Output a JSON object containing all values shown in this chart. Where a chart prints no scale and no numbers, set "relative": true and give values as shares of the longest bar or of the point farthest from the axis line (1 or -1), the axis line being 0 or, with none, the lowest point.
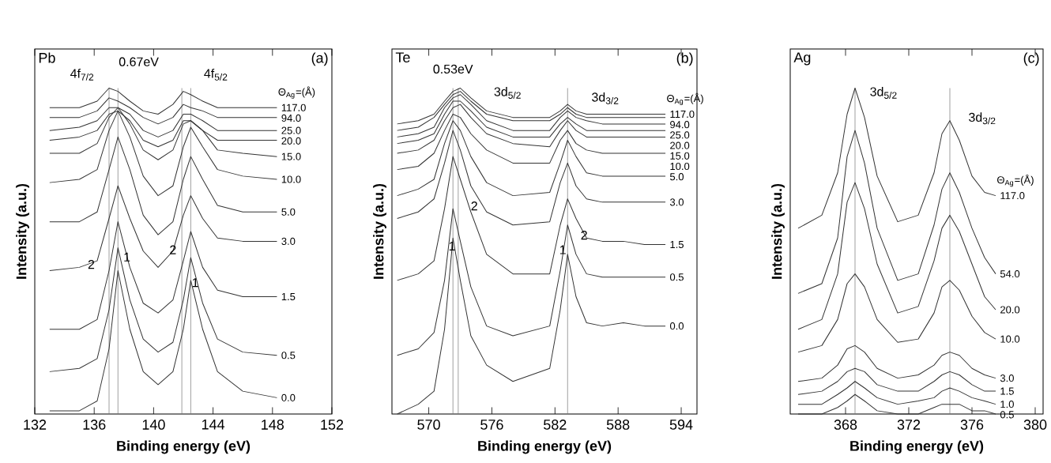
{
  "chart_data": [
    {
      "type": "line",
      "title": "Pb",
      "subtitle": "(a)",
      "xlabel": "Binding energy (eV)",
      "ylabel": "Intensity (a.u.)",
      "relative": true,
      "legend_title": "Θ$_{Ag}$=(Å)",
      "xlim": [
        132,
        152
      ],
      "xticks": [
        132,
        136,
        140,
        144,
        148,
        152
      ],
      "x": [
        133,
        135,
        136.2,
        137,
        137.6,
        138.4,
        139.3,
        140.3,
        141.3,
        142,
        142.5,
        143.3,
        144.3,
        146,
        148.3
      ],
      "series": [
        {
          "name": "117.0",
          "color": "#333333",
          "values": [
            0.94,
            0.94,
            0.96,
            1.0,
            0.99,
            0.96,
            0.93,
            0.92,
            0.95,
            0.99,
            0.98,
            0.96,
            0.94,
            0.94,
            0.94
          ]
        },
        {
          "name": "94.0",
          "color": "#333333",
          "values": [
            0.91,
            0.91,
            0.93,
            0.97,
            0.96,
            0.94,
            0.91,
            0.89,
            0.91,
            0.95,
            0.94,
            0.93,
            0.91,
            0.91,
            0.91
          ]
        },
        {
          "name": "25.0",
          "color": "#333333",
          "values": [
            0.87,
            0.88,
            0.9,
            0.94,
            0.94,
            0.92,
            0.87,
            0.85,
            0.87,
            0.92,
            0.92,
            0.9,
            0.87,
            0.87,
            0.87
          ]
        },
        {
          "name": "20.0",
          "color": "#333333",
          "values": [
            0.84,
            0.85,
            0.87,
            0.92,
            0.93,
            0.9,
            0.84,
            0.82,
            0.84,
            0.9,
            0.9,
            0.87,
            0.84,
            0.84,
            0.84
          ]
        },
        {
          "name": "15.0",
          "color": "#333333",
          "values": [
            0.8,
            0.8,
            0.83,
            0.91,
            0.94,
            0.89,
            0.81,
            0.78,
            0.81,
            0.89,
            0.9,
            0.87,
            0.81,
            0.8,
            0.79
          ]
        },
        {
          "name": "10.0",
          "color": "#333333",
          "values": [
            0.71,
            0.72,
            0.75,
            0.87,
            0.93,
            0.85,
            0.73,
            0.67,
            0.7,
            0.82,
            0.88,
            0.82,
            0.75,
            0.73,
            0.72
          ]
        },
        {
          "name": "5.0",
          "color": "#333333",
          "values": [
            0.59,
            0.59,
            0.62,
            0.75,
            0.85,
            0.75,
            0.61,
            0.55,
            0.59,
            0.72,
            0.79,
            0.72,
            0.64,
            0.62,
            0.62
          ]
        },
        {
          "name": "3.0",
          "color": "#333333",
          "values": [
            0.44,
            0.45,
            0.47,
            0.6,
            0.7,
            0.6,
            0.5,
            0.45,
            0.5,
            0.61,
            0.67,
            0.6,
            0.54,
            0.53,
            0.53
          ]
        },
        {
          "name": "1.5",
          "color": "#333333",
          "values": [
            0.26,
            0.26,
            0.29,
            0.44,
            0.59,
            0.45,
            0.34,
            0.31,
            0.35,
            0.47,
            0.56,
            0.45,
            0.38,
            0.36,
            0.36
          ]
        },
        {
          "name": "0.5",
          "color": "#333333",
          "values": [
            0.13,
            0.14,
            0.17,
            0.32,
            0.51,
            0.35,
            0.23,
            0.19,
            0.22,
            0.35,
            0.48,
            0.34,
            0.23,
            0.19,
            0.18
          ]
        },
        {
          "name": "0.0",
          "color": "#333333",
          "values": [
            0.01,
            0.01,
            0.04,
            0.2,
            0.44,
            0.26,
            0.13,
            0.09,
            0.13,
            0.26,
            0.41,
            0.26,
            0.13,
            0.07,
            0.05
          ]
        }
      ],
      "ref_lines": [
        {
          "axis": "x",
          "value": 137.0,
          "color": "#777777"
        },
        {
          "axis": "x",
          "value": 137.6,
          "color": "#777777"
        },
        {
          "axis": "x",
          "value": 141.9,
          "color": "#777777"
        },
        {
          "axis": "x",
          "value": 142.5,
          "color": "#777777"
        }
      ],
      "annotations": [
        "4f$_{7/2}$",
        "0.67eV",
        "4f$_{5/2}$",
        "2",
        "1",
        "2",
        "1"
      ]
    },
    {
      "type": "line",
      "title": "Te",
      "subtitle": "(b)",
      "xlabel": "Binding energy (eV)",
      "ylabel": "Intensity (a.u.)",
      "relative": true,
      "legend_title": "Θ$_{Ag}$=(Å)",
      "xlim": [
        566.5,
        595.5
      ],
      "xticks": [
        570,
        576,
        582,
        588,
        594
      ],
      "x": [
        567,
        569,
        570.5,
        571.5,
        572.3,
        573,
        574,
        575.5,
        578,
        581.5,
        582.5,
        583.2,
        584,
        585,
        586.5,
        588.5,
        590.5,
        592.5
      ],
      "series": [
        {
          "name": "117.0",
          "color": "#333333",
          "values": [
            0.89,
            0.9,
            0.92,
            0.96,
            0.99,
            1.0,
            0.97,
            0.93,
            0.91,
            0.91,
            0.93,
            0.95,
            0.93,
            0.92,
            0.92,
            0.92,
            0.92,
            0.92
          ]
        },
        {
          "name": "94.0",
          "color": "#333333",
          "values": [
            0.87,
            0.88,
            0.91,
            0.95,
            0.98,
            0.99,
            0.96,
            0.92,
            0.9,
            0.9,
            0.92,
            0.94,
            0.92,
            0.91,
            0.91,
            0.91,
            0.91,
            0.91
          ]
        },
        {
          "name": "25.0",
          "color": "#333333",
          "values": [
            0.85,
            0.86,
            0.88,
            0.94,
            0.97,
            0.98,
            0.95,
            0.9,
            0.87,
            0.87,
            0.91,
            0.93,
            0.91,
            0.9,
            0.89,
            0.89,
            0.89,
            0.89
          ]
        },
        {
          "name": "20.0",
          "color": "#333333",
          "values": [
            0.83,
            0.84,
            0.86,
            0.92,
            0.96,
            0.96,
            0.93,
            0.88,
            0.85,
            0.85,
            0.89,
            0.91,
            0.89,
            0.87,
            0.87,
            0.87,
            0.87,
            0.87
          ]
        },
        {
          "name": "15.0",
          "color": "#333333",
          "values": [
            0.8,
            0.81,
            0.84,
            0.9,
            0.94,
            0.95,
            0.91,
            0.86,
            0.83,
            0.82,
            0.87,
            0.9,
            0.87,
            0.85,
            0.85,
            0.85,
            0.85,
            0.85
          ]
        },
        {
          "name": "10.0",
          "color": "#333333",
          "values": [
            0.75,
            0.76,
            0.8,
            0.87,
            0.92,
            0.91,
            0.86,
            0.81,
            0.77,
            0.77,
            0.84,
            0.87,
            0.83,
            0.81,
            0.8,
            0.8,
            0.8,
            0.8
          ]
        },
        {
          "name": "5.0",
          "color": "#333333",
          "values": [
            0.67,
            0.69,
            0.72,
            0.83,
            0.9,
            0.87,
            0.79,
            0.71,
            0.67,
            0.68,
            0.77,
            0.84,
            0.79,
            0.74,
            0.73,
            0.73,
            0.73,
            0.73
          ]
        },
        {
          "name": "3.0",
          "color": "#333333",
          "values": [
            0.6,
            0.62,
            0.66,
            0.77,
            0.87,
            0.81,
            0.7,
            0.62,
            0.58,
            0.59,
            0.71,
            0.77,
            0.7,
            0.66,
            0.65,
            0.65,
            0.65,
            0.65
          ]
        },
        {
          "name": "1.5",
          "color": "#333333",
          "values": [
            0.41,
            0.43,
            0.47,
            0.63,
            0.79,
            0.72,
            0.62,
            0.49,
            0.43,
            0.43,
            0.58,
            0.66,
            0.6,
            0.54,
            0.53,
            0.53,
            0.52,
            0.52
          ]
        },
        {
          "name": "0.5",
          "color": "#333333",
          "values": [
            0.18,
            0.2,
            0.25,
            0.41,
            0.63,
            0.53,
            0.39,
            0.27,
            0.24,
            0.27,
            0.44,
            0.58,
            0.49,
            0.43,
            0.42,
            0.42,
            0.42,
            0.42
          ]
        },
        {
          "name": "0.0",
          "color": "#333333",
          "values": [
            0,
            0.03,
            0.07,
            0.26,
            0.54,
            0.41,
            0.24,
            0.15,
            0.1,
            0.14,
            0.32,
            0.49,
            0.36,
            0.28,
            0.27,
            0.28,
            0.27,
            0.27
          ]
        }
      ],
      "ref_lines": [
        {
          "axis": "x",
          "value": 572.3,
          "color": "#777777"
        },
        {
          "axis": "x",
          "value": 572.8,
          "color": "#777777"
        },
        {
          "axis": "x",
          "value": 583.2,
          "color": "#777777"
        }
      ],
      "annotations": [
        "0.53eV",
        "3d$_{5/2}$",
        "3d$_{3/2}$",
        "2",
        "1",
        "2",
        "1"
      ]
    },
    {
      "type": "line",
      "title": "Ag",
      "subtitle": "(c)",
      "xlabel": "Binding energy (eV)",
      "ylabel": "Intensity (a.u.)",
      "relative": true,
      "legend_title": "Θ$_{Ag}$=(Å)",
      "xlim": [
        364.5,
        380.5
      ],
      "xticks": [
        368,
        372,
        376,
        380
      ],
      "x": [
        365,
        366.5,
        367.5,
        368.1,
        368.6,
        369.2,
        370,
        371.3,
        372.6,
        373.6,
        374.1,
        374.6,
        375.2,
        376,
        376.8,
        377.5
      ],
      "series": [
        {
          "name": "117.0",
          "color": "#333333",
          "values": [
            0.57,
            0.61,
            0.74,
            0.92,
            1.0,
            0.91,
            0.73,
            0.59,
            0.61,
            0.74,
            0.86,
            0.9,
            0.84,
            0.73,
            0.68,
            0.67
          ]
        },
        {
          "name": "54.0",
          "color": "#333333",
          "values": [
            0.37,
            0.4,
            0.54,
            0.79,
            0.87,
            0.77,
            0.57,
            0.41,
            0.43,
            0.58,
            0.69,
            0.74,
            0.68,
            0.57,
            0.48,
            0.43
          ]
        },
        {
          "name": "20.0",
          "color": "#333333",
          "values": [
            0.26,
            0.29,
            0.43,
            0.65,
            0.71,
            0.63,
            0.46,
            0.31,
            0.33,
            0.47,
            0.57,
            0.61,
            0.56,
            0.46,
            0.36,
            0.32
          ]
        },
        {
          "name": "10.0",
          "color": "#333333",
          "values": [
            0.19,
            0.21,
            0.29,
            0.4,
            0.43,
            0.39,
            0.29,
            0.22,
            0.23,
            0.31,
            0.39,
            0.41,
            0.38,
            0.3,
            0.25,
            0.23
          ]
        },
        {
          "name": "3.0",
          "color": "#333333",
          "values": [
            0.1,
            0.11,
            0.15,
            0.2,
            0.21,
            0.19,
            0.14,
            0.11,
            0.12,
            0.15,
            0.18,
            0.19,
            0.18,
            0.14,
            0.12,
            0.11
          ]
        },
        {
          "name": "1.5",
          "color": "#333333",
          "values": [
            0.06,
            0.07,
            0.1,
            0.13,
            0.14,
            0.13,
            0.09,
            0.07,
            0.07,
            0.1,
            0.12,
            0.13,
            0.12,
            0.09,
            0.07,
            0.07
          ]
        },
        {
          "name": "1.0",
          "color": "#333333",
          "values": [
            0.03,
            0.03,
            0.06,
            0.08,
            0.1,
            0.08,
            0.05,
            0.03,
            0.04,
            0.05,
            0.07,
            0.08,
            0.07,
            0.05,
            0.04,
            0.03
          ]
        },
        {
          "name": "0.5",
          "color": "#333333",
          "values": [
            0,
            0,
            0.02,
            0.04,
            0.06,
            0.04,
            0.01,
            0,
            0,
            0.02,
            0.03,
            0.03,
            0.03,
            0.01,
            0.01,
            0
          ]
        }
      ],
      "ref_lines": [
        {
          "axis": "x",
          "value": 368.6,
          "color": "#777777"
        },
        {
          "axis": "x",
          "value": 374.6,
          "color": "#777777"
        }
      ],
      "annotations": [
        "3d$_{5/2}$",
        "3d$_{3/2}$"
      ]
    }
  ]
}
